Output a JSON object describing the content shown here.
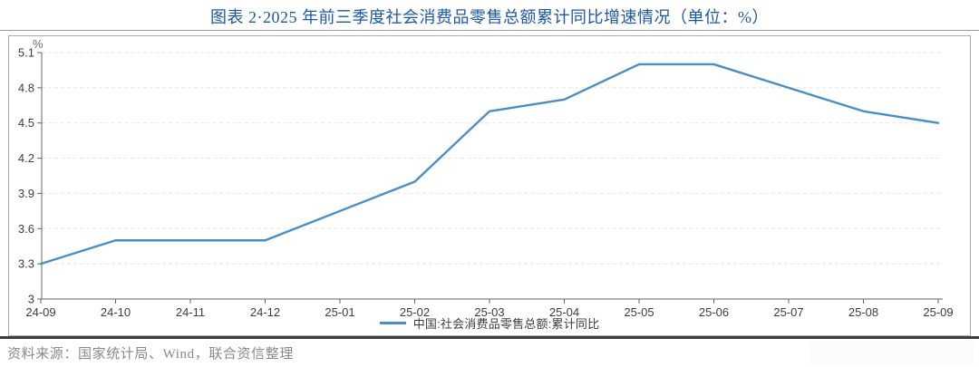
{
  "page": {
    "title": "图表 2·2025 年前三季度社会消费品零售总额累计同比增速情况（单位：%）",
    "source_note": "资料来源：国家统计局、Wind，联合资信整理"
  },
  "chart_data": {
    "type": "line",
    "title": "图表 2·2025 年前三季度社会消费品零售总额累计同比增速情况（单位：%）",
    "unit_label": "%",
    "categories": [
      "24-09",
      "24-10",
      "24-11",
      "24-12",
      "25-01",
      "25-02",
      "25-03",
      "25-04",
      "25-05",
      "25-06",
      "25-07",
      "25-08",
      "25-09"
    ],
    "series": [
      {
        "name": "中国:社会消费品零售总额:累计同比",
        "color": "#4b8ec1",
        "values": [
          3.3,
          3.5,
          3.5,
          3.5,
          null,
          4.0,
          4.6,
          4.7,
          5.0,
          5.0,
          4.8,
          4.6,
          4.5
        ]
      }
    ],
    "y_ticks": [
      3,
      3.3,
      3.6,
      3.9,
      4.2,
      4.5,
      4.8,
      5.1
    ],
    "ylim": [
      3,
      5.1
    ],
    "xlabel": "",
    "ylabel": "%",
    "grid": "horizontal-dashed",
    "legend_position": "bottom-center"
  },
  "colors": {
    "title_blue": "#1d57a7",
    "series_line": "#4b8ec1",
    "axis": "#666666",
    "tick_label": "#3d3d3d",
    "gridline": "#e5e5e5",
    "legend_text": "#3d3d3d",
    "source_text": "#8a8a8a",
    "divider_thin": "#9b9b9b",
    "divider_thick": "#3d3d3d",
    "panel_border": "#ababab"
  }
}
